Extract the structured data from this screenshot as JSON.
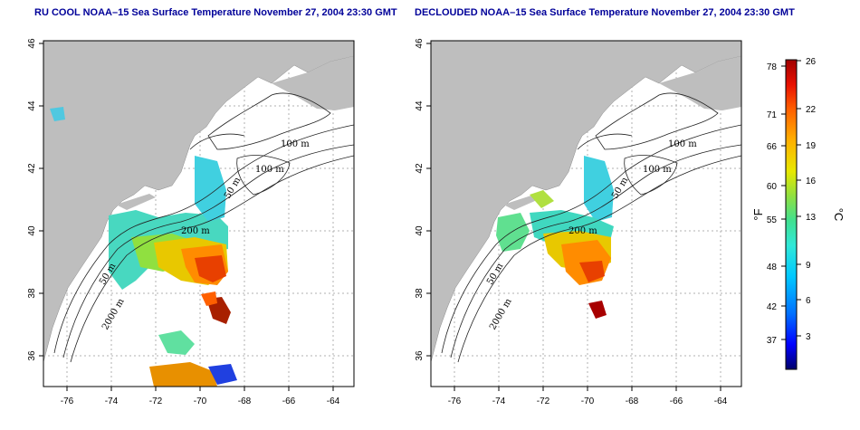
{
  "panels": [
    {
      "id": "left",
      "title": "RU COOL NOAA–15 Sea Surface Temperature November 27, 2004 23:30 GMT",
      "contour_labels": [
        "100 m",
        "100 m",
        "50 m",
        "200 m",
        "50 m",
        "2000 m"
      ]
    },
    {
      "id": "right",
      "title": "DECLOUDED NOAA–15 Sea Surface Temperature November 27, 2004 23:30 GMT",
      "contour_labels": [
        "100 m",
        "100 m",
        "50 m",
        "200 m",
        "50 m",
        "2000 m"
      ]
    }
  ],
  "axes": {
    "lon_ticks": [
      "-76",
      "-74",
      "-72",
      "-70",
      "-68",
      "-66",
      "-64"
    ],
    "lat_ticks": [
      "36",
      "38",
      "40",
      "42",
      "44",
      "46"
    ]
  },
  "colorbar": {
    "fahrenheit_ticks": [
      "78",
      "71",
      "66",
      "60",
      "55",
      "48",
      "42",
      "37"
    ],
    "celsius_ticks": [
      "26",
      "22",
      "19",
      "16",
      "13",
      "9",
      "6",
      "3"
    ],
    "left_unit": "°F",
    "right_unit": "°C",
    "colors": [
      "#00006a",
      "#0000ff",
      "#0070ff",
      "#00c8ff",
      "#30e8d8",
      "#40e090",
      "#90e040",
      "#e8e800",
      "#ffb000",
      "#ff6000",
      "#e81000",
      "#a00000"
    ]
  },
  "style": {
    "land": "#bebebe",
    "grid": "#b0b0b0",
    "title_color": "#000099"
  }
}
